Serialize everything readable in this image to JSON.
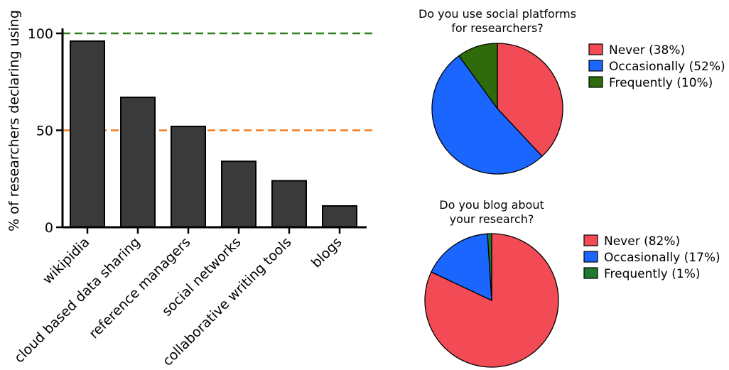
{
  "chart_data": [
    {
      "type": "bar",
      "title": "",
      "ylabel": "% of researchers declaring using",
      "xlabel": "",
      "ylim": [
        0,
        100
      ],
      "yticks": [
        0,
        50,
        100
      ],
      "categories": [
        "wikipidia",
        "cloud based data sharing",
        "reference managers",
        "social networks",
        "collaborative writing tools",
        "blogs"
      ],
      "values": [
        96,
        67,
        52,
        34,
        24,
        11
      ],
      "bar_color": "#3a3a3a",
      "reference_lines": [
        {
          "value": 100,
          "color": "#2e7d1e",
          "style": "dashed"
        },
        {
          "value": 50,
          "color": "#f07a1c",
          "style": "dashed"
        }
      ]
    },
    {
      "type": "pie",
      "title": "Do you use social platforms for researchers?",
      "title_lines": [
        "Do you use social platforms",
        "for researchers?"
      ],
      "slices": [
        {
          "label": "Never (38%)",
          "value": 38,
          "color": "#f24b55"
        },
        {
          "label": "Occasionally (52%)",
          "value": 52,
          "color": "#1a66ff"
        },
        {
          "label": "Frequently (10%)",
          "value": 10,
          "color": "#2f6b0a"
        }
      ],
      "legend_position": "right"
    },
    {
      "type": "pie",
      "title": "Do you blog about your research?",
      "title_lines": [
        "Do you blog about",
        "your research?"
      ],
      "slices": [
        {
          "label": "Never (82%)",
          "value": 82,
          "color": "#f24b55"
        },
        {
          "label": "Occasionally (17%)",
          "value": 17,
          "color": "#1a66ff"
        },
        {
          "label": "Frequently (1%)",
          "value": 1,
          "color": "#1e7a2e"
        }
      ],
      "legend_position": "right"
    }
  ]
}
